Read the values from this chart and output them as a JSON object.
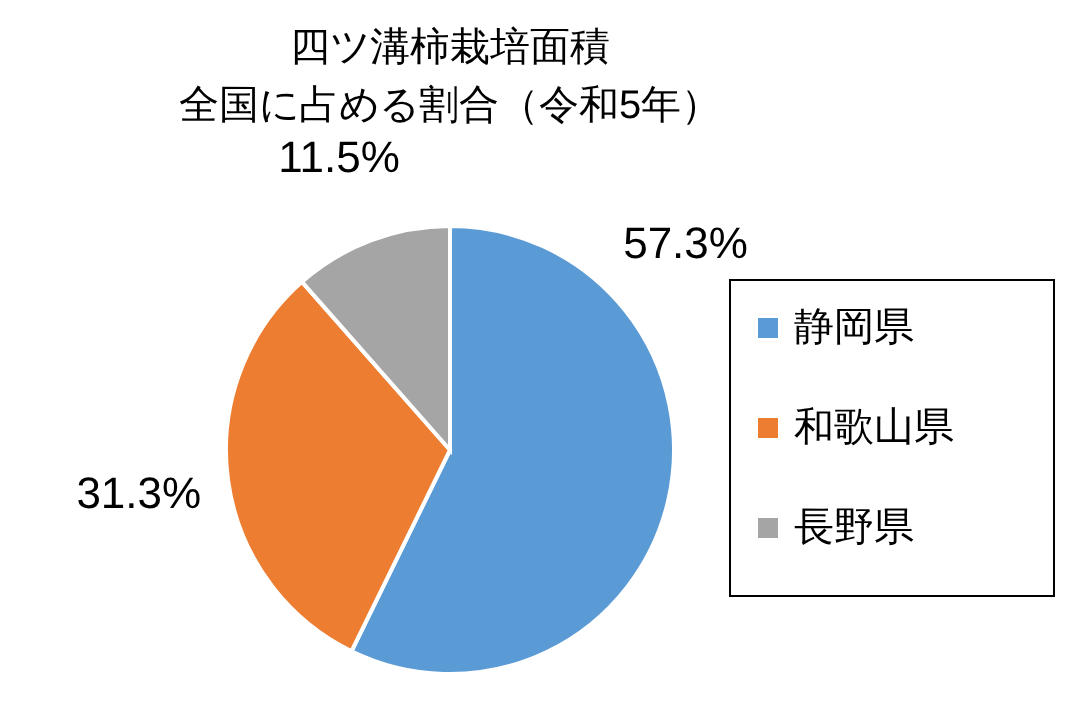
{
  "chart_data": {
    "type": "pie",
    "title": "四ツ溝柿栽培面積",
    "subtitle": "全国に占める割合（令和5年）",
    "categories": [
      "静岡県",
      "和歌山県",
      "長野県"
    ],
    "values": [
      57.3,
      31.3,
      11.5
    ],
    "value_labels": [
      "57.3%",
      "31.3%",
      "11.5%"
    ],
    "colors": [
      "#5b9bd5",
      "#ed7d31",
      "#a5a5a5"
    ],
    "legend": "right"
  }
}
